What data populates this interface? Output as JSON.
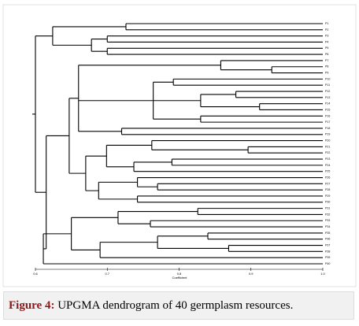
{
  "chart_data": {
    "type": "dendrogram",
    "x_label": "Coefficient",
    "xlim": [
      0.6,
      1.0
    ],
    "xticks": [
      0.6,
      0.7,
      0.8,
      0.9,
      {
        "value": 1.0,
        "label": "1.0"
      }
    ],
    "color": "#000000",
    "tree": {
      "height": 0.6,
      "children": [
        {
          "height": 0.624,
          "children": [
            {
              "height": 0.726,
              "children": [
                "P1",
                "P2"
              ]
            },
            {
              "height": 0.678,
              "children": [
                {
                  "height": 0.7,
                  "children": [
                    "P3",
                    "P4"
                  ]
                },
                {
                  "height": 0.7,
                  "children": [
                    "P5",
                    "P6"
                  ]
                }
              ]
            }
          ]
        },
        {
          "height": 0.615,
          "children": [
            {
              "height": 0.647,
              "children": [
                {
                  "height": 0.66,
                  "children": [
                    {
                      "height": 0.858,
                      "children": [
                        "P7",
                        {
                          "height": 0.929,
                          "children": [
                            "P8",
                            "P9"
                          ]
                        }
                      ]
                    },
                    {
                      "height": 0.764,
                      "children": [
                        {
                          "height": 0.792,
                          "children": [
                            "P10",
                            "P11"
                          ]
                        },
                        {
                          "height": 0.83,
                          "children": [
                            {
                              "height": 0.879,
                              "children": [
                                "P12",
                                "P13"
                              ]
                            },
                            {
                              "height": 0.912,
                              "children": [
                                "P14",
                                "P15"
                              ]
                            }
                          ]
                        },
                        {
                          "height": 0.83,
                          "children": [
                            "P16",
                            "P17"
                          ]
                        }
                      ]
                    },
                    {
                      "height": 0.72,
                      "children": [
                        "P18",
                        "P19"
                      ]
                    }
                  ]
                },
                {
                  "height": 0.67,
                  "children": [
                    {
                      "height": 0.699,
                      "children": [
                        {
                          "height": 0.762,
                          "children": [
                            "P20",
                            {
                              "height": 0.896,
                              "children": [
                                "P21",
                                "P22"
                              ]
                            }
                          ]
                        },
                        {
                          "height": 0.737,
                          "children": [
                            {
                              "height": 0.79,
                              "children": [
                                "P23",
                                "P24"
                              ]
                            },
                            "P25"
                          ]
                        }
                      ]
                    },
                    {
                      "height": 0.688,
                      "children": [
                        {
                          "height": 0.742,
                          "children": [
                            "P26",
                            {
                              "height": 0.77,
                              "children": [
                                "P27",
                                "P28"
                              ]
                            }
                          ]
                        },
                        {
                          "height": 0.742,
                          "children": [
                            "P29",
                            "P30"
                          ]
                        }
                      ]
                    }
                  ]
                }
              ]
            },
            {
              "height": 0.611,
              "children": [
                {
                  "height": 0.65,
                  "children": [
                    {
                      "height": 0.715,
                      "children": [
                        {
                          "height": 0.826,
                          "children": [
                            "P31",
                            "P32"
                          ]
                        },
                        {
                          "height": 0.76,
                          "children": [
                            "P33",
                            "P34"
                          ]
                        }
                      ]
                    },
                    {
                      "height": 0.69,
                      "children": [
                        {
                          "height": 0.77,
                          "children": [
                            {
                              "height": 0.84,
                              "children": [
                                "P35",
                                "P36"
                              ]
                            },
                            {
                              "height": 0.869,
                              "children": [
                                "P37",
                                "P38"
                              ]
                            }
                          ]
                        },
                        {
                          "height": 0.72,
                          "children": [
                            "P39"
                          ]
                        }
                      ]
                    }
                  ]
                },
                "P40"
              ]
            }
          ]
        }
      ]
    }
  },
  "caption": {
    "label": "Figure 4:",
    "text": "UPGMA dendrogram of 40 germplasm resources."
  }
}
